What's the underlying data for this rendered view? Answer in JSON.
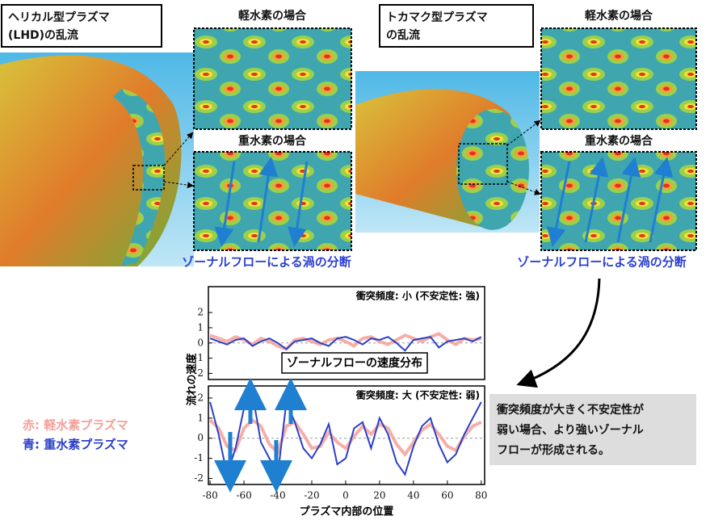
{
  "lhd": {
    "title_lines": [
      "ヘリカル型プラズマ",
      "(LHD)の乱流"
    ],
    "light": "軽水素の場合",
    "heavy": "重水素の場合",
    "caption": "ゾーナルフローによる渦の分断"
  },
  "tokamak": {
    "title_lines": [
      "トカマク型プラズマ",
      "の乱流"
    ],
    "light": "軽水素の場合",
    "heavy": "重水素の場合",
    "caption": "ゾーナルフローによる渦の分断"
  },
  "note_lines": [
    "衝突頻度が大きく不安定性が",
    "弱い場合、より強いゾーナル",
    "フローが形成される。"
  ],
  "chart_data": [
    {
      "type": "line",
      "title": "ゾーナルフローの速度分布",
      "annotation": "衝突頻度: 小 (不安定性: 強)",
      "y_label": "流れの速度",
      "x": [
        -80,
        -75,
        -70,
        -65,
        -60,
        -55,
        -50,
        -45,
        -40,
        -35,
        -30,
        -25,
        -20,
        -15,
        -10,
        -5,
        0,
        5,
        10,
        15,
        20,
        25,
        30,
        35,
        40,
        45,
        50,
        55,
        60,
        65,
        70,
        75,
        80
      ],
      "xlim": [
        -81,
        82
      ],
      "ylim": [
        -2.4,
        3.7
      ],
      "yticks": [
        2,
        1,
        0,
        -1,
        -2
      ],
      "series": [
        {
          "name": "赤: 軽水素プラズマ",
          "color": "#f4a098",
          "values": [
            0.5,
            0.3,
            0.1,
            0.4,
            0.2,
            -0.1,
            0.3,
            0.1,
            -0.2,
            -0.4,
            0.2,
            0.3,
            0.1,
            -0.1,
            0.2,
            0.3,
            0.1,
            -0.2,
            0.3,
            0.4,
            0.1,
            -0.1,
            0.2,
            0.5,
            0.3,
            0.1,
            0.4,
            0.6,
            0.2,
            -0.1,
            0.3,
            0.2,
            0.3
          ]
        },
        {
          "name": "青: 重水素プラズマ",
          "color": "#2b3fc8",
          "values": [
            0.3,
            0.1,
            -0.1,
            0.2,
            0.3,
            -0.2,
            0.1,
            0.3,
            0,
            -0.4,
            0.1,
            0.2,
            0.3,
            0,
            -0.2,
            0.3,
            0.4,
            0.2,
            -0.1,
            0.3,
            0.2,
            0.4,
            0,
            -0.5,
            0.2,
            0.3,
            0.4,
            -0.3,
            0.1,
            0.2,
            0.3,
            0.1,
            0.4
          ]
        }
      ]
    },
    {
      "type": "line",
      "annotation": "衝突頻度: 大 (不安定性: 弱)",
      "x_label": "プラズマ内部の位置",
      "x": [
        -80,
        -75,
        -70,
        -65,
        -60,
        -55,
        -50,
        -45,
        -40,
        -35,
        -30,
        -25,
        -20,
        -15,
        -10,
        -5,
        0,
        5,
        10,
        15,
        20,
        25,
        30,
        35,
        40,
        45,
        50,
        55,
        60,
        65,
        70,
        75,
        80
      ],
      "xlim": [
        -81,
        82
      ],
      "ylim": [
        -2.3,
        2.6
      ],
      "yticks": [
        2,
        1,
        0,
        -1,
        -2
      ],
      "xticks": [
        -80,
        -60,
        -40,
        -20,
        0,
        20,
        40,
        60,
        80
      ],
      "series": [
        {
          "color": "#f4a098",
          "values": [
            0.9,
            0.5,
            -0.4,
            -0.6,
            0.5,
            0.9,
            0.6,
            -0.3,
            -0.7,
            0.6,
            0.8,
            0.2,
            -0.5,
            -0.4,
            0.3,
            -0.2,
            -0.5,
            0.1,
            0.6,
            0.2,
            0.7,
            0.5,
            -0.3,
            -0.8,
            -0.2,
            0.4,
            0.7,
            0.2,
            -0.4,
            -0.6,
            0.1,
            0.6,
            0.8
          ]
        },
        {
          "color": "#2b3fc8",
          "values": [
            1.8,
            0.2,
            -1.8,
            -0.5,
            1.5,
            2.2,
            -0.2,
            -1.0,
            -1.8,
            1.8,
            0.8,
            -0.5,
            -1.0,
            -0.3,
            0.7,
            -1.3,
            -1.0,
            0.5,
            0.8,
            -0.5,
            1.0,
            0.2,
            -1.2,
            -1.8,
            -0.4,
            0.6,
            1.0,
            -0.3,
            -1.2,
            -0.8,
            0.2,
            1.0,
            1.8
          ]
        }
      ]
    }
  ]
}
